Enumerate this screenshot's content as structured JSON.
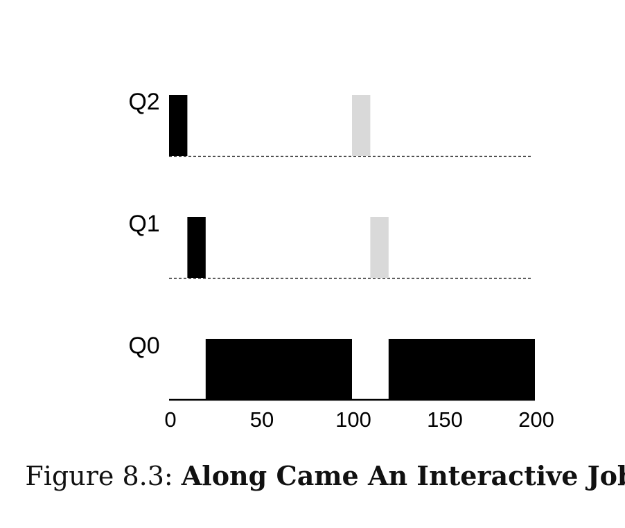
{
  "chart_data": {
    "type": "bar",
    "queues": [
      "Q2",
      "Q1",
      "Q0"
    ],
    "xlim": [
      0,
      200
    ],
    "x_ticks": [
      0,
      50,
      100,
      150,
      200
    ],
    "series": [
      {
        "color": "#000000",
        "segments": [
          {
            "queue": "Q2",
            "start": 0,
            "end": 10
          },
          {
            "queue": "Q1",
            "start": 10,
            "end": 20
          },
          {
            "queue": "Q0",
            "start": 20,
            "end": 100
          },
          {
            "queue": "Q0",
            "start": 120,
            "end": 200
          }
        ]
      },
      {
        "color": "#d9d9d9",
        "segments": [
          {
            "queue": "Q2",
            "start": 100,
            "end": 110
          },
          {
            "queue": "Q1",
            "start": 110,
            "end": 120
          }
        ]
      }
    ]
  },
  "caption": {
    "prefix": "Figure 8.3: ",
    "title": "Along Came An Interactive Job"
  }
}
